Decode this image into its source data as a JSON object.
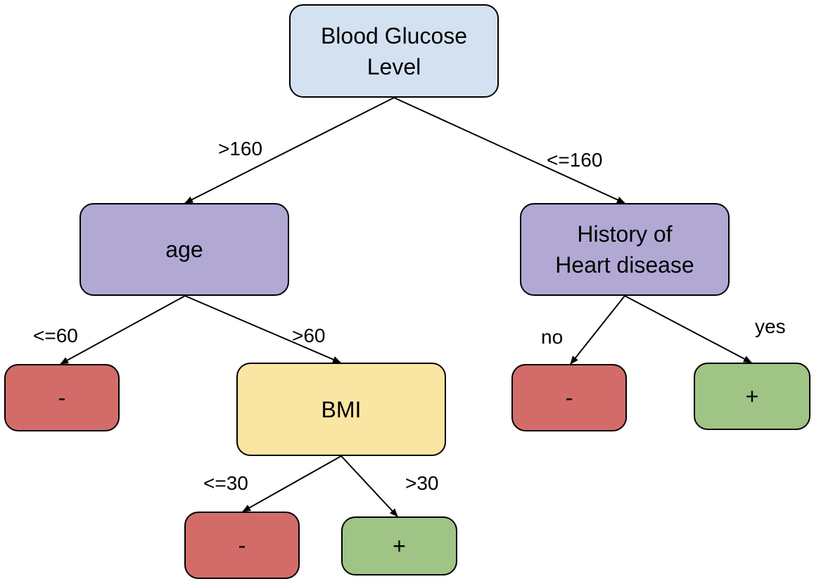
{
  "colors": {
    "root": "#d4e1f0",
    "split": "#b2a8d4",
    "bmi": "#fbe5a3",
    "negative": "#d36c69",
    "positive": "#9fc485",
    "edge": "#000000"
  },
  "nodes": {
    "root": "Blood Glucose\nLevel",
    "age": "age",
    "history": "History of\nHeart disease",
    "bmi": "BMI",
    "age_leaf": "-",
    "history_no_leaf": "-",
    "history_yes_leaf": "+",
    "bmi_low_leaf": "-",
    "bmi_high_leaf": "+"
  },
  "edges": {
    "root_left": ">160",
    "root_right": "<=160",
    "age_left": "<=60",
    "age_right": ">60",
    "history_left": "no",
    "history_right": "yes",
    "bmi_left": "<=30",
    "bmi_right": ">30"
  }
}
